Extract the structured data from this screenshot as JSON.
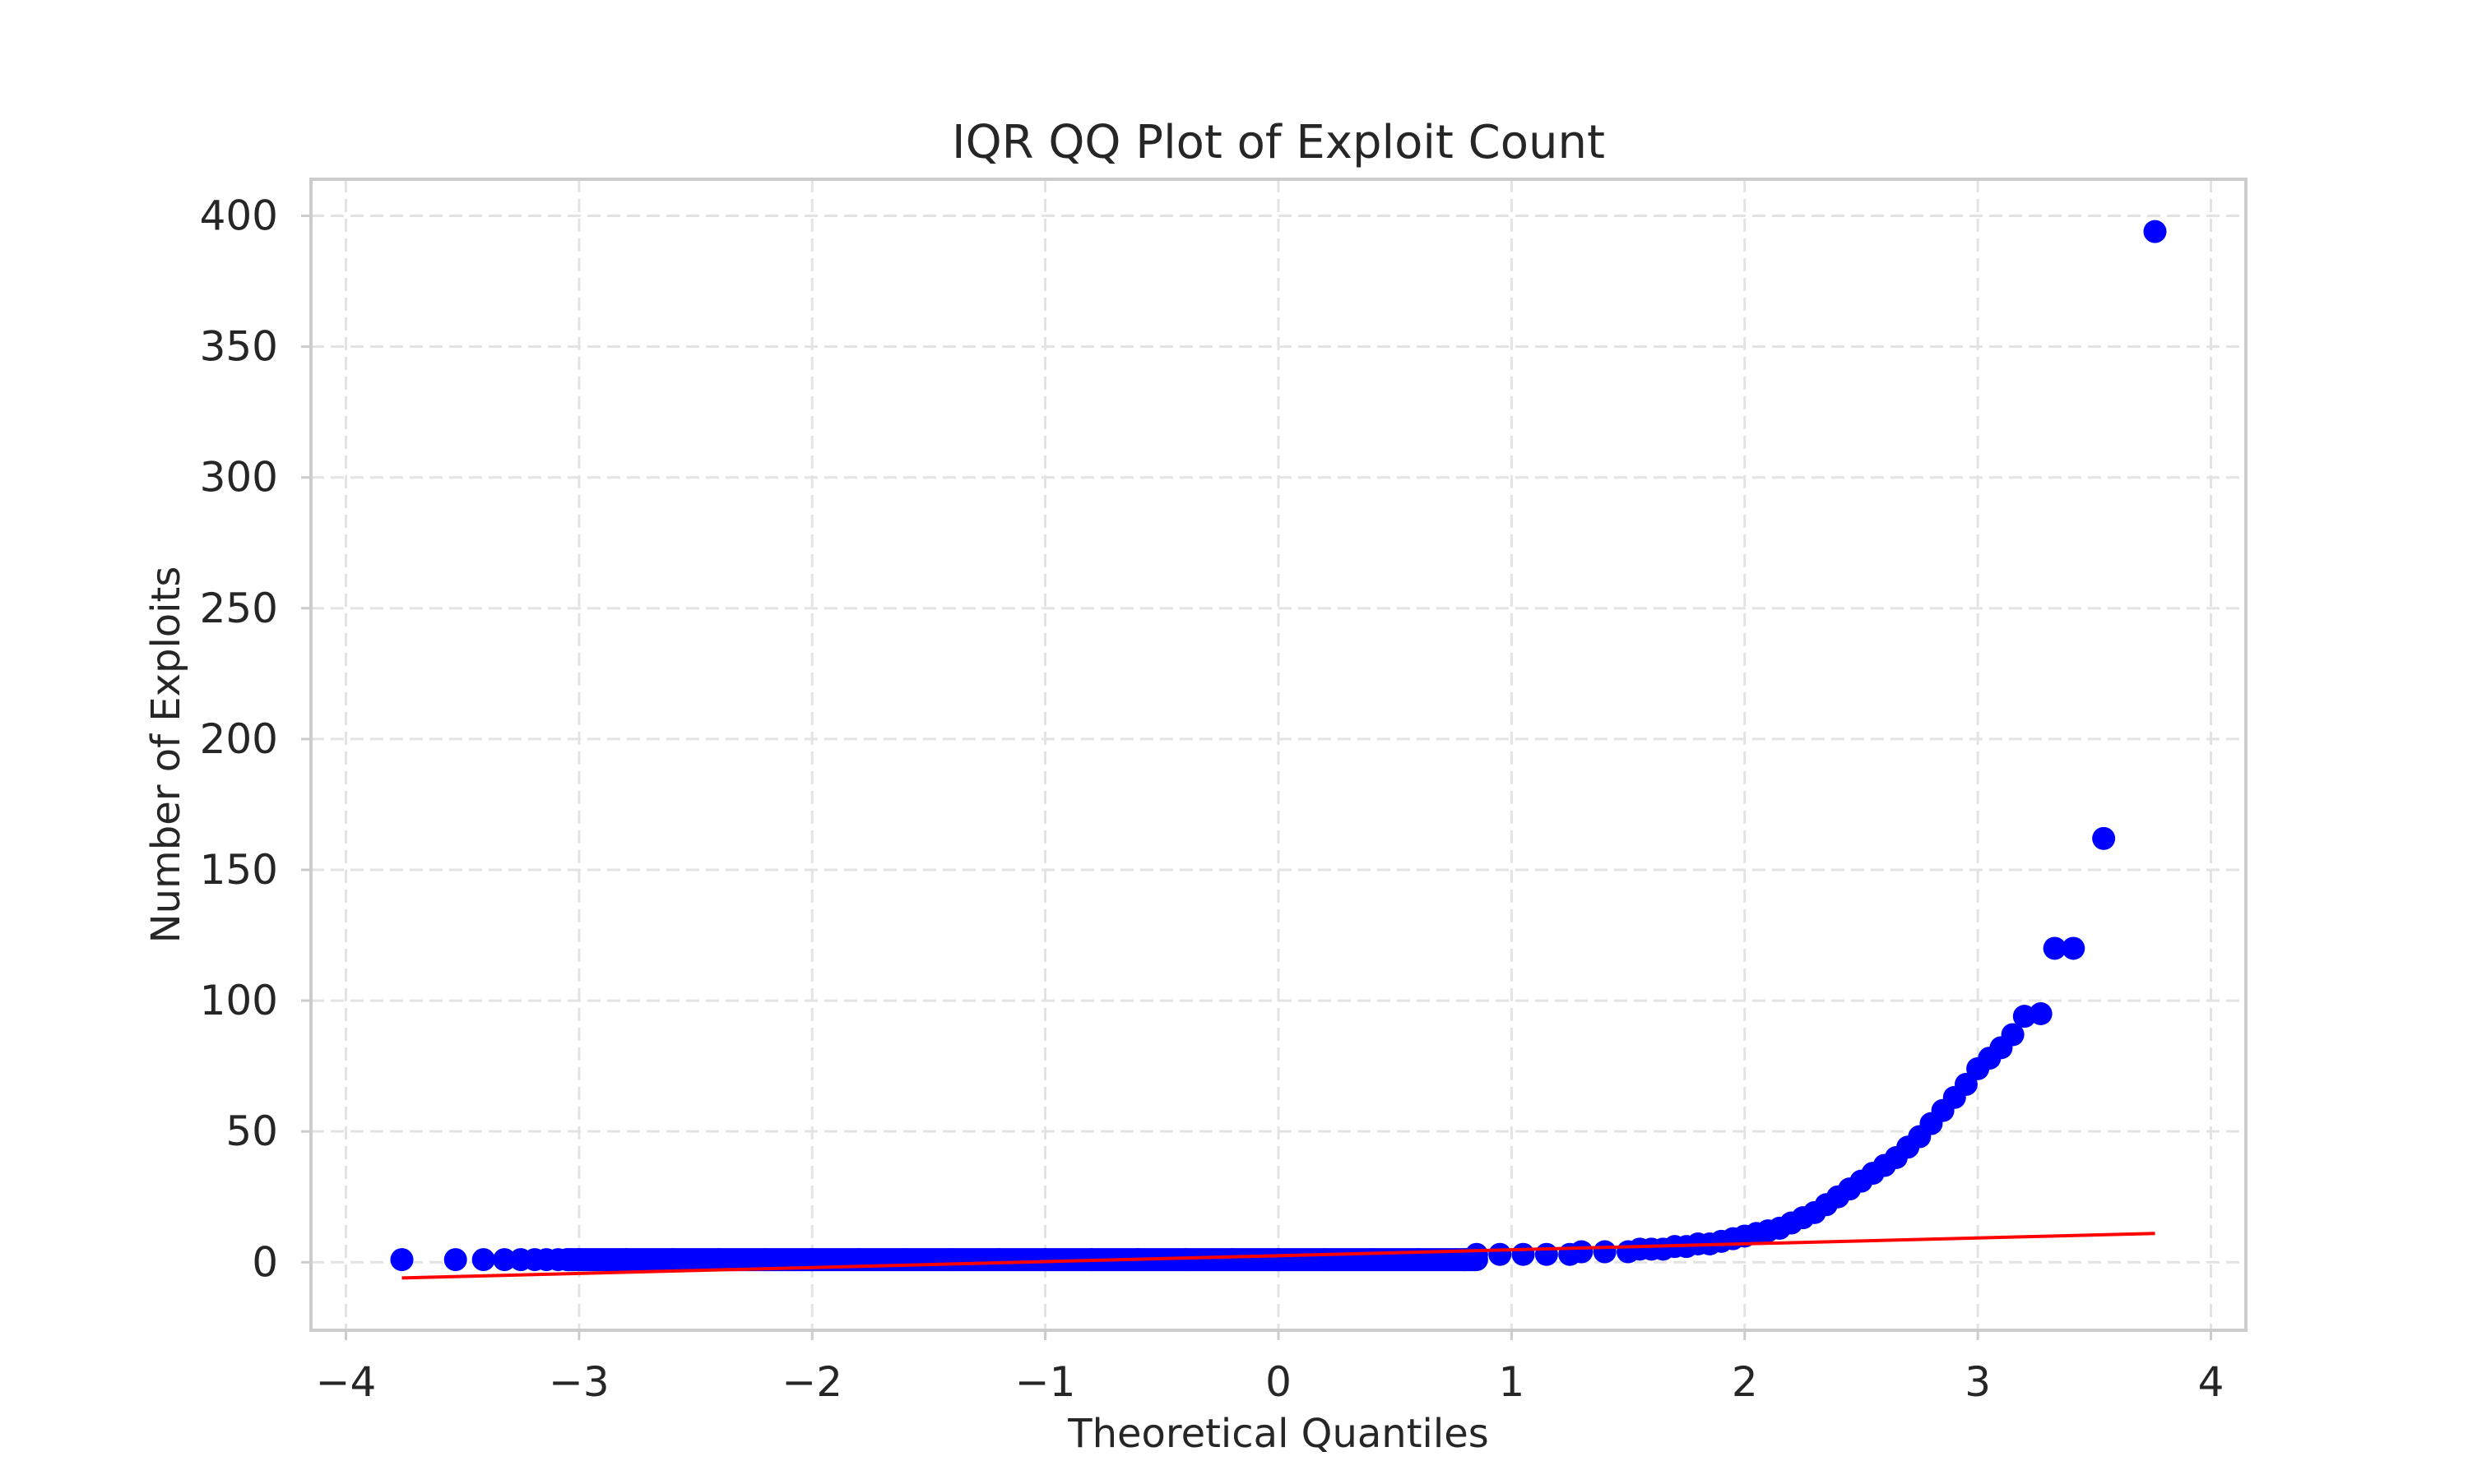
{
  "chart_data": {
    "type": "scatter",
    "title": "IQR QQ Plot of Exploit Count",
    "xlabel": "Theoretical Quantiles",
    "ylabel": "Number of Exploits",
    "xlim": [
      -4.15,
      4.15
    ],
    "ylim": [
      -26,
      414
    ],
    "grid": true,
    "xticks": [
      -4,
      -3,
      -2,
      -1,
      0,
      1,
      2,
      3,
      4
    ],
    "xtick_labels": [
      "−4",
      "−3",
      "−2",
      "−1",
      "0",
      "1",
      "2",
      "3",
      "4"
    ],
    "yticks": [
      0,
      50,
      100,
      150,
      200,
      250,
      300,
      350,
      400
    ],
    "ytick_labels": [
      "0",
      "50",
      "100",
      "150",
      "200",
      "250",
      "300",
      "350",
      "400"
    ],
    "marker_color": "#0000ff",
    "line_color": "#ff0000",
    "series": [
      {
        "kind": "points",
        "x": [
          -3.76,
          -3.53,
          -3.41,
          -3.32,
          -3.25,
          -3.19,
          -3.14,
          -3.09,
          -3.05,
          -3.0,
          -2.8,
          -2.6,
          -2.4,
          -2.2,
          -2.0,
          -1.8,
          -1.6,
          -1.4,
          -1.2,
          -1.0,
          -0.8,
          -0.6,
          -0.4,
          -0.2,
          0.0,
          0.2,
          0.4,
          0.6,
          0.8,
          0.85,
          0.95,
          1.05,
          1.15,
          1.25,
          1.3,
          1.4,
          1.5,
          1.55,
          1.6,
          1.65,
          1.7,
          1.75,
          1.8,
          1.85,
          1.9,
          1.95,
          2.0,
          2.05,
          2.1,
          2.15,
          2.2,
          2.25,
          2.3,
          2.35,
          2.4,
          2.45,
          2.5,
          2.55,
          2.6,
          2.65,
          2.7,
          2.75,
          2.8,
          2.85,
          2.9,
          2.95,
          3.0,
          3.05,
          3.1,
          3.15,
          3.2,
          3.27,
          3.33,
          3.41,
          3.54,
          3.76
        ],
        "y": [
          1,
          1,
          1,
          1,
          1,
          1,
          1,
          1,
          1,
          1,
          1,
          1,
          1,
          1,
          1,
          1,
          1,
          1,
          1,
          1,
          1,
          1,
          1,
          1,
          1,
          1,
          1,
          1,
          1,
          3,
          3,
          3,
          3,
          3,
          4,
          4,
          4,
          5,
          5,
          5,
          6,
          6,
          7,
          7,
          8,
          9,
          10,
          11,
          12,
          13,
          15,
          17,
          19,
          22,
          25,
          28,
          31,
          34,
          37,
          40,
          44,
          48,
          53,
          58,
          63,
          68,
          74,
          78,
          82,
          87,
          94,
          95,
          120,
          120,
          162,
          394
        ]
      },
      {
        "kind": "fit-line",
        "x": [
          -3.76,
          3.76
        ],
        "y": [
          -6,
          11
        ]
      }
    ]
  }
}
